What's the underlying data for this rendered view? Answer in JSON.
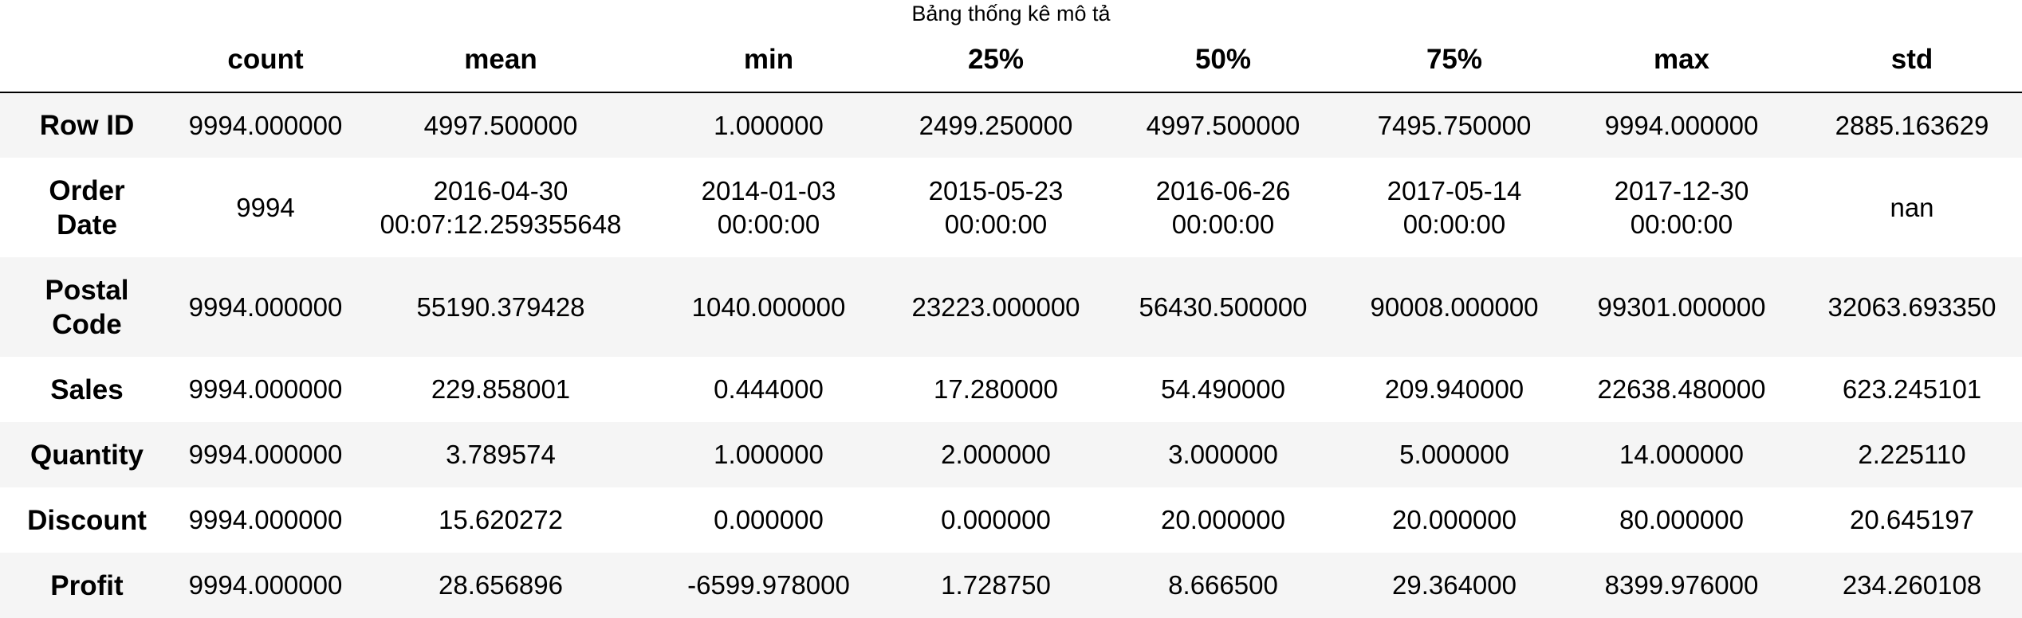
{
  "caption": "Bảng thống kê mô tả",
  "columns": [
    "count",
    "mean",
    "min",
    "25%",
    "50%",
    "75%",
    "max",
    "std"
  ],
  "rows": [
    {
      "label": "Row ID",
      "cells": [
        "9994.000000",
        "4997.500000",
        "1.000000",
        "2499.250000",
        "4997.500000",
        "7495.750000",
        "9994.000000",
        "2885.163629"
      ]
    },
    {
      "label_lines": [
        "Order",
        "Date"
      ],
      "cells": [
        [
          "9994"
        ],
        [
          "2016-04-30",
          "00:07:12.259355648"
        ],
        [
          "2014-01-03",
          "00:00:00"
        ],
        [
          "2015-05-23",
          "00:00:00"
        ],
        [
          "2016-06-26",
          "00:00:00"
        ],
        [
          "2017-05-14",
          "00:00:00"
        ],
        [
          "2017-12-30",
          "00:00:00"
        ],
        [
          "nan"
        ]
      ]
    },
    {
      "label_lines": [
        "Postal",
        "Code"
      ],
      "cells": [
        "9994.000000",
        "55190.379428",
        "1040.000000",
        "23223.000000",
        "56430.500000",
        "90008.000000",
        "99301.000000",
        "32063.693350"
      ]
    },
    {
      "label": "Sales",
      "cells": [
        "9994.000000",
        "229.858001",
        "0.444000",
        "17.280000",
        "54.490000",
        "209.940000",
        "22638.480000",
        "623.245101"
      ]
    },
    {
      "label": "Quantity",
      "cells": [
        "9994.000000",
        "3.789574",
        "1.000000",
        "2.000000",
        "3.000000",
        "5.000000",
        "14.000000",
        "2.225110"
      ]
    },
    {
      "label": "Discount",
      "cells": [
        "9994.000000",
        "15.620272",
        "0.000000",
        "0.000000",
        "20.000000",
        "20.000000",
        "80.000000",
        "20.645197"
      ]
    },
    {
      "label": "Profit",
      "cells": [
        "9994.000000",
        "28.656896",
        "-6599.978000",
        "1.728750",
        "8.666500",
        "29.364000",
        "8399.976000",
        "234.260108"
      ]
    }
  ]
}
